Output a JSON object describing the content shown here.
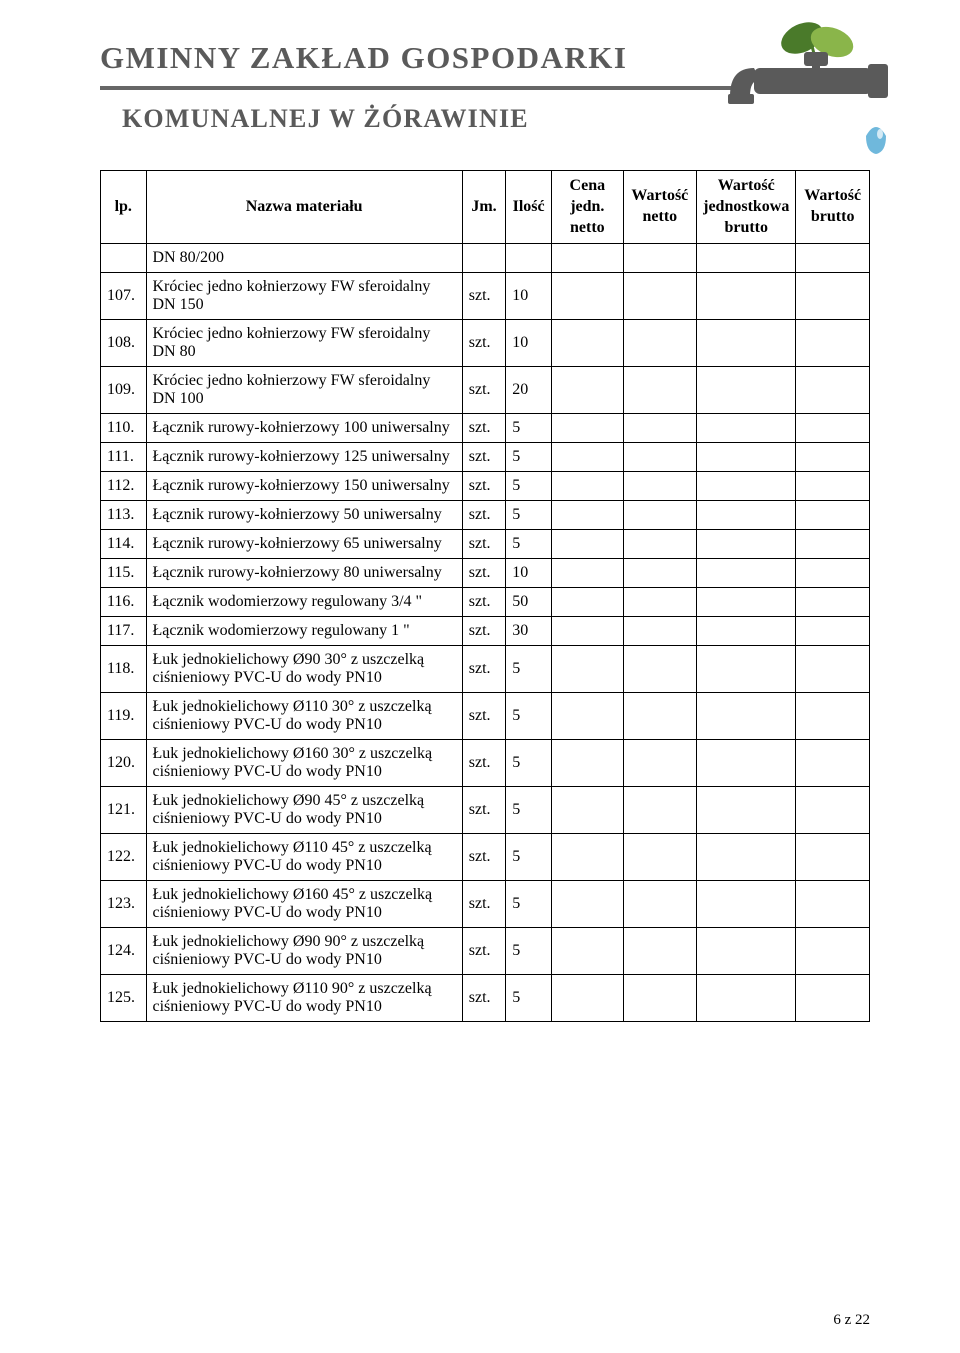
{
  "header": {
    "line1": "GMINNY ZAKŁAD GOSPODARKI",
    "line2": "KOMUNALNEJ W ŻÓRAWINIE",
    "divider_color": "#676767",
    "logo_leaf_color1": "#4a7a2a",
    "logo_leaf_color2": "#8ab54a",
    "logo_faucet_color": "#5a5a5a",
    "logo_drop_color": "#6fb8dc"
  },
  "table": {
    "columns": [
      {
        "key": "lp",
        "label": "lp."
      },
      {
        "key": "name",
        "label": "Nazwa materiału"
      },
      {
        "key": "jm",
        "label": "Jm."
      },
      {
        "key": "qty",
        "label": "Ilość"
      },
      {
        "key": "cena",
        "label": "Cena jedn. netto"
      },
      {
        "key": "wn",
        "label": "Wartość netto"
      },
      {
        "key": "wjb",
        "label": "Wartość jednostkowa brutto"
      },
      {
        "key": "wb",
        "label": "Wartość brutto"
      }
    ],
    "rows": [
      {
        "lp": "",
        "name": "DN 80/200",
        "jm": "",
        "qty": ""
      },
      {
        "lp": "107.",
        "name": "Króciec jedno kołnierzowy FW sferoidalny DN 150",
        "jm": "szt.",
        "qty": "10"
      },
      {
        "lp": "108.",
        "name": "Króciec jedno kołnierzowy FW sferoidalny DN 80",
        "jm": "szt.",
        "qty": "10"
      },
      {
        "lp": "109.",
        "name": "Króciec jedno kołnierzowy FW sferoidalny DN 100",
        "jm": "szt.",
        "qty": "20"
      },
      {
        "lp": "110.",
        "name": "Łącznik rurowy-kołnierzowy 100 uniwersalny",
        "jm": "szt.",
        "qty": "5"
      },
      {
        "lp": "111.",
        "name": "Łącznik rurowy-kołnierzowy 125 uniwersalny",
        "jm": "szt.",
        "qty": "5"
      },
      {
        "lp": "112.",
        "name": "Łącznik rurowy-kołnierzowy 150 uniwersalny",
        "jm": "szt.",
        "qty": "5"
      },
      {
        "lp": "113.",
        "name": "Łącznik rurowy-kołnierzowy 50 uniwersalny",
        "jm": "szt.",
        "qty": "5"
      },
      {
        "lp": "114.",
        "name": "Łącznik rurowy-kołnierzowy 65 uniwersalny",
        "jm": "szt.",
        "qty": "5"
      },
      {
        "lp": "115.",
        "name": "Łącznik rurowy-kołnierzowy 80 uniwersalny",
        "jm": "szt.",
        "qty": "10"
      },
      {
        "lp": "116.",
        "name": "Łącznik wodomierzowy regulowany 3/4 \"",
        "jm": "szt.",
        "qty": "50"
      },
      {
        "lp": "117.",
        "name": "Łącznik wodomierzowy regulowany 1 \"",
        "jm": "szt.",
        "qty": "30"
      },
      {
        "lp": "118.",
        "name": "Łuk jednokielichowy Ø90 30° z uszczelką ciśnieniowy PVC-U do wody PN10",
        "jm": "szt.",
        "qty": "5"
      },
      {
        "lp": "119.",
        "name": "Łuk jednokielichowy Ø110 30° z uszczelką ciśnieniowy PVC-U do wody PN10",
        "jm": "szt.",
        "qty": "5"
      },
      {
        "lp": "120.",
        "name": "Łuk jednokielichowy Ø160 30° z uszczelką ciśnieniowy PVC-U do wody PN10",
        "jm": "szt.",
        "qty": "5"
      },
      {
        "lp": "121.",
        "name": "Łuk jednokielichowy Ø90 45° z uszczelką ciśnieniowy PVC-U do wody PN10",
        "jm": "szt.",
        "qty": "5"
      },
      {
        "lp": "122.",
        "name": "Łuk jednokielichowy Ø110 45° z uszczelką ciśnieniowy PVC-U do wody PN10",
        "jm": "szt.",
        "qty": "5"
      },
      {
        "lp": "123.",
        "name": "Łuk jednokielichowy Ø160 45° z uszczelką ciśnieniowy PVC-U do wody PN10",
        "jm": "szt.",
        "qty": "5"
      },
      {
        "lp": "124.",
        "name": "Łuk jednokielichowy Ø90 90° z uszczelką ciśnieniowy PVC-U do wody PN10",
        "jm": "szt.",
        "qty": "5"
      },
      {
        "lp": "125.",
        "name": "Łuk jednokielichowy Ø110 90° z uszczelką ciśnieniowy PVC-U do wody PN10",
        "jm": "szt.",
        "qty": "5"
      }
    ]
  },
  "footer": {
    "page_label": "6 z 22"
  }
}
